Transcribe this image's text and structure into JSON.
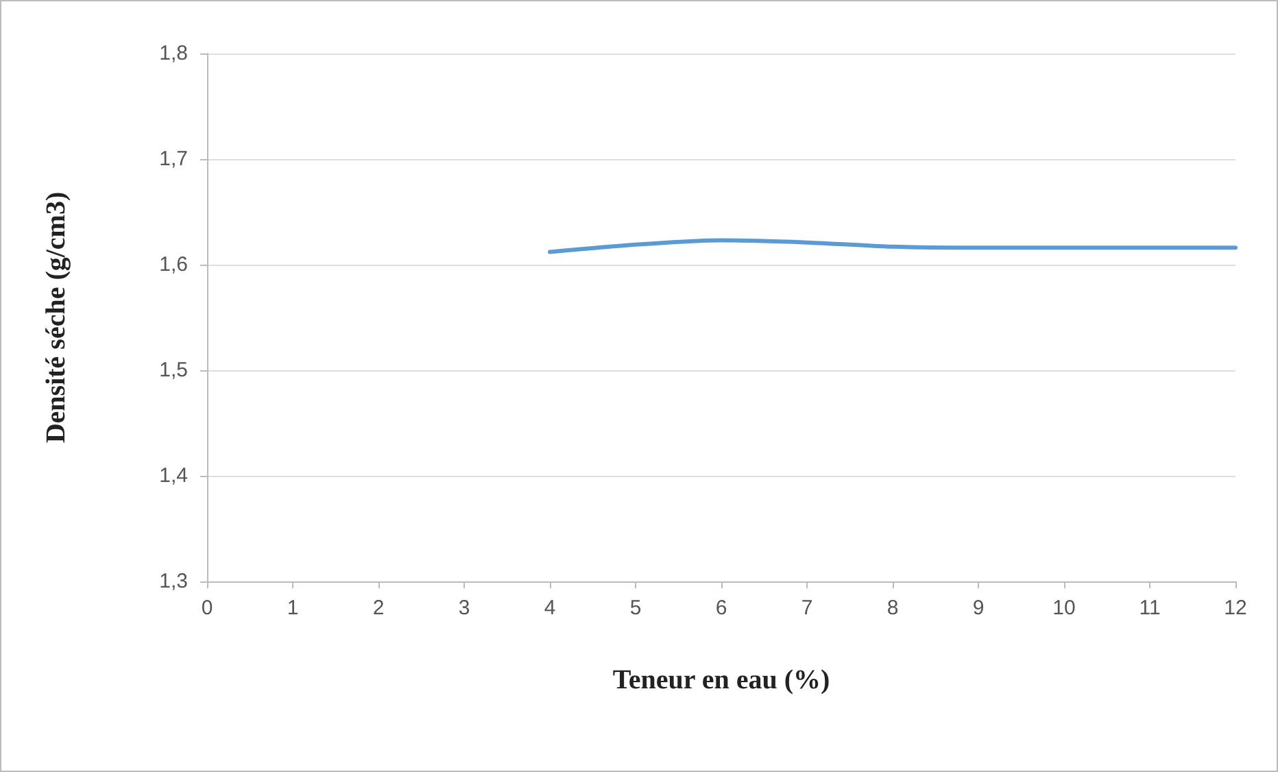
{
  "chart_data": {
    "type": "line",
    "xlabel": "Teneur en eau (%)",
    "ylabel": "Densité séche (g/cm3)",
    "x": [
      4,
      5,
      6,
      7,
      8,
      9,
      10,
      11,
      12
    ],
    "series": [
      {
        "color": "#5b9bd5",
        "values": [
          1.612,
          1.619,
          1.623,
          1.621,
          1.617,
          1.616,
          1.616,
          1.616,
          1.616
        ]
      }
    ],
    "xlim": [
      0,
      12
    ],
    "xticks": [
      0,
      1,
      2,
      3,
      4,
      5,
      6,
      7,
      8,
      9,
      10,
      11,
      12
    ],
    "ylim": [
      1.3,
      1.8
    ],
    "yticks": [
      {
        "value": 1.3,
        "label": "1,3"
      },
      {
        "value": 1.4,
        "label": "1,4"
      },
      {
        "value": 1.5,
        "label": "1,5"
      },
      {
        "value": 1.6,
        "label": "1,6"
      },
      {
        "value": 1.7,
        "label": "1,7"
      },
      {
        "value": 1.8,
        "label": "1,8"
      }
    ],
    "grid": "y",
    "marker": "none",
    "line_style": "solid"
  }
}
